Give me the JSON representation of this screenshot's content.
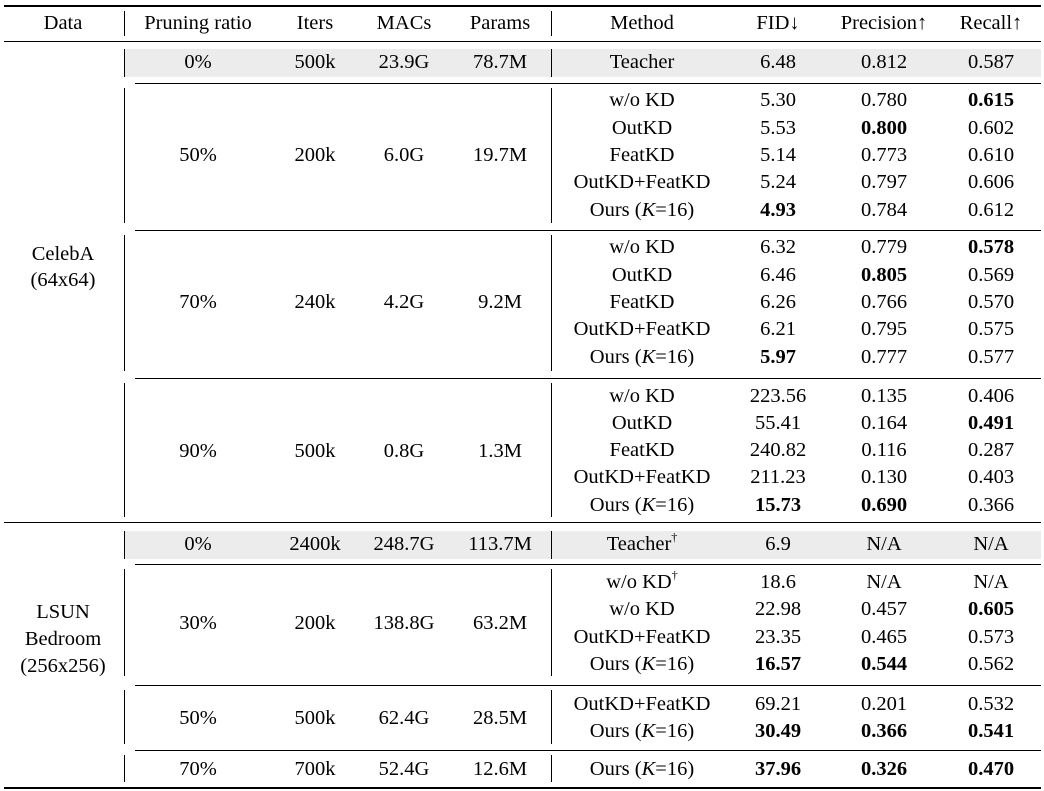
{
  "headers": [
    "Data",
    "Pruning ratio",
    "Iters",
    "MACs",
    "Params",
    "Method",
    "FID↓",
    "Precision↑",
    "Recall↑"
  ],
  "datasets": [
    {
      "name_lines": [
        "CelebA",
        "(64x64)"
      ]
    },
    {
      "name_lines": [
        "LSUN",
        "Bedroom",
        "(256x256)"
      ]
    }
  ],
  "groups": [
    {
      "ratio": "0%",
      "iters": "500k",
      "macs": "23.9G",
      "params": "78.7M",
      "teacher": true,
      "rows": [
        {
          "method": "Teacher",
          "fid": "6.48",
          "precision": "0.812",
          "recall": "0.587"
        }
      ]
    },
    {
      "ratio": "50%",
      "iters": "200k",
      "macs": "6.0G",
      "params": "19.7M",
      "rows": [
        {
          "method": "w/o KD",
          "fid": "5.30",
          "precision": "0.780",
          "recall": "0.615",
          "bold": [
            "recall"
          ]
        },
        {
          "method": "OutKD",
          "fid": "5.53",
          "precision": "0.800",
          "recall": "0.602",
          "bold": [
            "precision"
          ]
        },
        {
          "method": "FeatKD",
          "fid": "5.14",
          "precision": "0.773",
          "recall": "0.610"
        },
        {
          "method": "OutKD+FeatKD",
          "fid": "5.24",
          "precision": "0.797",
          "recall": "0.606"
        },
        {
          "method": "Ours",
          "ours": true,
          "fid": "4.93",
          "precision": "0.784",
          "recall": "0.612",
          "bold": [
            "fid"
          ]
        }
      ]
    },
    {
      "ratio": "70%",
      "iters": "240k",
      "macs": "4.2G",
      "params": "9.2M",
      "rows": [
        {
          "method": "w/o KD",
          "fid": "6.32",
          "precision": "0.779",
          "recall": "0.578",
          "bold": [
            "recall"
          ]
        },
        {
          "method": "OutKD",
          "fid": "6.46",
          "precision": "0.805",
          "recall": "0.569",
          "bold": [
            "precision"
          ]
        },
        {
          "method": "FeatKD",
          "fid": "6.26",
          "precision": "0.766",
          "recall": "0.570"
        },
        {
          "method": "OutKD+FeatKD",
          "fid": "6.21",
          "precision": "0.795",
          "recall": "0.575"
        },
        {
          "method": "Ours",
          "ours": true,
          "fid": "5.97",
          "precision": "0.777",
          "recall": "0.577",
          "bold": [
            "fid"
          ]
        }
      ]
    },
    {
      "ratio": "90%",
      "iters": "500k",
      "macs": "0.8G",
      "params": "1.3M",
      "rows": [
        {
          "method": "w/o KD",
          "fid": "223.56",
          "precision": "0.135",
          "recall": "0.406"
        },
        {
          "method": "OutKD",
          "fid": "55.41",
          "precision": "0.164",
          "recall": "0.491",
          "bold": [
            "recall"
          ]
        },
        {
          "method": "FeatKD",
          "fid": "240.82",
          "precision": "0.116",
          "recall": "0.287"
        },
        {
          "method": "OutKD+FeatKD",
          "fid": "211.23",
          "precision": "0.130",
          "recall": "0.403"
        },
        {
          "method": "Ours",
          "ours": true,
          "fid": "15.73",
          "precision": "0.690",
          "recall": "0.366",
          "bold": [
            "fid",
            "precision"
          ]
        }
      ]
    },
    {
      "ratio": "0%",
      "iters": "2400k",
      "macs": "248.7G",
      "params": "113.7M",
      "teacher": true,
      "rows": [
        {
          "method": "Teacher",
          "dagger": true,
          "fid": "6.9",
          "precision": "N/A",
          "recall": "N/A"
        }
      ]
    },
    {
      "ratio": "30%",
      "iters": "200k",
      "macs": "138.8G",
      "params": "63.2M",
      "rows": [
        {
          "method": "w/o KD",
          "dagger": true,
          "fid": "18.6",
          "precision": "N/A",
          "recall": "N/A"
        },
        {
          "method": "w/o KD",
          "fid": "22.98",
          "precision": "0.457",
          "recall": "0.605",
          "bold": [
            "recall"
          ]
        },
        {
          "method": "OutKD+FeatKD",
          "fid": "23.35",
          "precision": "0.465",
          "recall": "0.573"
        },
        {
          "method": "Ours",
          "ours": true,
          "fid": "16.57",
          "precision": "0.544",
          "recall": "0.562",
          "bold": [
            "fid",
            "precision"
          ]
        }
      ]
    },
    {
      "ratio": "50%",
      "iters": "500k",
      "macs": "62.4G",
      "params": "28.5M",
      "rows": [
        {
          "method": "OutKD+FeatKD",
          "fid": "69.21",
          "precision": "0.201",
          "recall": "0.532"
        },
        {
          "method": "Ours",
          "ours": true,
          "fid": "30.49",
          "precision": "0.366",
          "recall": "0.541",
          "bold": [
            "fid",
            "precision",
            "recall"
          ]
        }
      ]
    },
    {
      "ratio": "70%",
      "iters": "700k",
      "macs": "52.4G",
      "params": "12.6M",
      "rows": [
        {
          "method": "Ours",
          "ours": true,
          "fid": "37.96",
          "precision": "0.326",
          "recall": "0.470",
          "bold": [
            "fid",
            "precision",
            "recall"
          ]
        }
      ]
    }
  ],
  "ours_suffix": {
    "open": "(",
    "k": "K",
    "eq": "=16)"
  },
  "dagger": "†"
}
